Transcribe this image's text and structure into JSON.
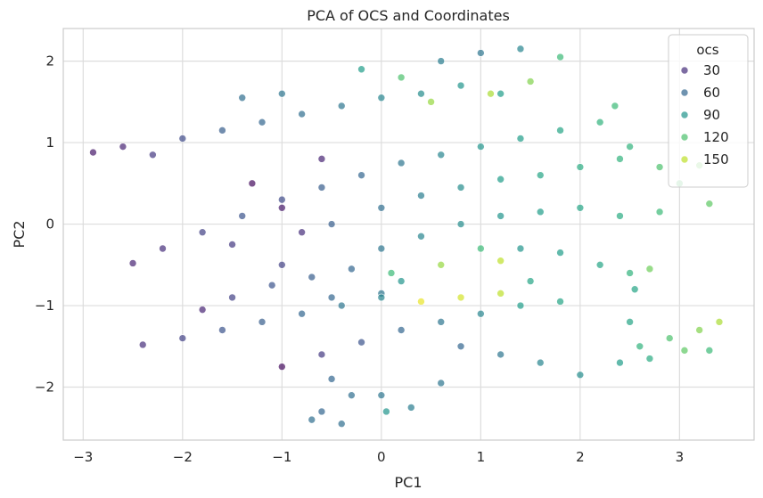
{
  "chart_data": {
    "type": "scatter",
    "title": "PCA of OCS and Coordinates",
    "xlabel": "PC1",
    "ylabel": "PC2",
    "xlim": [
      -3.2,
      3.75
    ],
    "ylim": [
      -2.65,
      2.4
    ],
    "xticks": [
      -3,
      -2,
      -1,
      0,
      1,
      2,
      3
    ],
    "xtick_labels": [
      "−3",
      "−2",
      "−1",
      "0",
      "1",
      "2",
      "3"
    ],
    "yticks": [
      -2,
      -1,
      0,
      1,
      2
    ],
    "ytick_labels": [
      "−2",
      "−1",
      "0",
      "1",
      "2"
    ],
    "grid": true,
    "legend": {
      "title": "ocs",
      "placement": "top-right",
      "entries": [
        {
          "label": "30",
          "value": 30
        },
        {
          "label": "60",
          "value": 60
        },
        {
          "label": "90",
          "value": 90
        },
        {
          "label": "120",
          "value": 120
        },
        {
          "label": "150",
          "value": 150
        }
      ]
    },
    "hue": {
      "variable": "ocs",
      "colormap": "viridis",
      "min": 10,
      "max": 165
    },
    "colormap_stops": [
      "#440154",
      "#482878",
      "#3e4989",
      "#31688e",
      "#26828e",
      "#1f9e89",
      "#35b779",
      "#6ece58",
      "#b5de2b",
      "#fde725"
    ],
    "point_alpha": 0.7,
    "points": [
      {
        "x": -2.9,
        "y": 0.88,
        "ocs": 20
      },
      {
        "x": -2.6,
        "y": 0.95,
        "ocs": 25
      },
      {
        "x": -2.3,
        "y": 0.85,
        "ocs": 35
      },
      {
        "x": -2.0,
        "y": 1.05,
        "ocs": 45
      },
      {
        "x": -1.6,
        "y": 1.15,
        "ocs": 55
      },
      {
        "x": -1.2,
        "y": 1.25,
        "ocs": 60
      },
      {
        "x": -0.8,
        "y": 1.35,
        "ocs": 65
      },
      {
        "x": -0.4,
        "y": 1.45,
        "ocs": 70
      },
      {
        "x": 0.0,
        "y": 1.55,
        "ocs": 80
      },
      {
        "x": 0.4,
        "y": 1.6,
        "ocs": 85
      },
      {
        "x": 0.8,
        "y": 1.7,
        "ocs": 90
      },
      {
        "x": 1.2,
        "y": 1.6,
        "ocs": 95
      },
      {
        "x": -1.4,
        "y": 1.55,
        "ocs": 65
      },
      {
        "x": -1.0,
        "y": 1.6,
        "ocs": 70
      },
      {
        "x": -0.2,
        "y": 1.9,
        "ocs": 95
      },
      {
        "x": 0.2,
        "y": 1.8,
        "ocs": 120
      },
      {
        "x": 0.6,
        "y": 2.0,
        "ocs": 75
      },
      {
        "x": 1.0,
        "y": 2.1,
        "ocs": 70
      },
      {
        "x": 1.4,
        "y": 2.15,
        "ocs": 80
      },
      {
        "x": 0.5,
        "y": 1.5,
        "ocs": 140
      },
      {
        "x": 1.1,
        "y": 1.6,
        "ocs": 145
      },
      {
        "x": 1.5,
        "y": 1.75,
        "ocs": 135
      },
      {
        "x": 1.8,
        "y": 2.05,
        "ocs": 115
      },
      {
        "x": -2.5,
        "y": -0.48,
        "ocs": 25
      },
      {
        "x": -2.2,
        "y": -0.3,
        "ocs": 30
      },
      {
        "x": -1.8,
        "y": -0.1,
        "ocs": 40
      },
      {
        "x": -1.4,
        "y": 0.1,
        "ocs": 50
      },
      {
        "x": -1.0,
        "y": 0.3,
        "ocs": 45
      },
      {
        "x": -0.6,
        "y": 0.45,
        "ocs": 55
      },
      {
        "x": -0.2,
        "y": 0.6,
        "ocs": 60
      },
      {
        "x": 0.2,
        "y": 0.75,
        "ocs": 70
      },
      {
        "x": 0.6,
        "y": 0.85,
        "ocs": 80
      },
      {
        "x": 1.0,
        "y": 0.95,
        "ocs": 90
      },
      {
        "x": 1.4,
        "y": 1.05,
        "ocs": 95
      },
      {
        "x": 1.8,
        "y": 1.15,
        "ocs": 100
      },
      {
        "x": 2.2,
        "y": 1.25,
        "ocs": 110
      },
      {
        "x": 2.35,
        "y": 1.45,
        "ocs": 115
      },
      {
        "x": -1.3,
        "y": 0.5,
        "ocs": 15
      },
      {
        "x": -1.0,
        "y": 0.2,
        "ocs": 20
      },
      {
        "x": -0.6,
        "y": 0.8,
        "ocs": 25
      },
      {
        "x": -0.8,
        "y": -0.1,
        "ocs": 30
      },
      {
        "x": -1.5,
        "y": -0.25,
        "ocs": 35
      },
      {
        "x": -1.0,
        "y": -0.5,
        "ocs": 40
      },
      {
        "x": -0.5,
        "y": 0.0,
        "ocs": 55
      },
      {
        "x": 0.0,
        "y": 0.2,
        "ocs": 65
      },
      {
        "x": 0.4,
        "y": 0.35,
        "ocs": 75
      },
      {
        "x": 0.8,
        "y": 0.45,
        "ocs": 85
      },
      {
        "x": 1.2,
        "y": 0.55,
        "ocs": 95
      },
      {
        "x": 1.6,
        "y": 0.6,
        "ocs": 100
      },
      {
        "x": 2.0,
        "y": 0.7,
        "ocs": 105
      },
      {
        "x": 2.4,
        "y": 0.8,
        "ocs": 110
      },
      {
        "x": 2.8,
        "y": 0.7,
        "ocs": 120
      },
      {
        "x": 3.2,
        "y": 0.72,
        "ocs": 130
      },
      {
        "x": 2.5,
        "y": 0.95,
        "ocs": 110
      },
      {
        "x": 3.0,
        "y": 0.5,
        "ocs": 120
      },
      {
        "x": 0.0,
        "y": -0.3,
        "ocs": 70
      },
      {
        "x": 0.4,
        "y": -0.15,
        "ocs": 80
      },
      {
        "x": 0.8,
        "y": 0.0,
        "ocs": 85
      },
      {
        "x": 1.2,
        "y": 0.1,
        "ocs": 90
      },
      {
        "x": 1.6,
        "y": 0.15,
        "ocs": 95
      },
      {
        "x": 2.0,
        "y": 0.2,
        "ocs": 100
      },
      {
        "x": 2.4,
        "y": 0.1,
        "ocs": 105
      },
      {
        "x": 2.8,
        "y": 0.15,
        "ocs": 115
      },
      {
        "x": 3.3,
        "y": 0.25,
        "ocs": 125
      },
      {
        "x": 1.4,
        "y": -0.3,
        "ocs": 90
      },
      {
        "x": 1.8,
        "y": -0.35,
        "ocs": 95
      },
      {
        "x": 2.2,
        "y": -0.5,
        "ocs": 100
      },
      {
        "x": 0.6,
        "y": -0.5,
        "ocs": 140
      },
      {
        "x": 1.0,
        "y": -0.3,
        "ocs": 115
      },
      {
        "x": 1.2,
        "y": -0.45,
        "ocs": 150
      },
      {
        "x": 0.1,
        "y": -0.6,
        "ocs": 115
      },
      {
        "x": 2.5,
        "y": -0.6,
        "ocs": 110
      },
      {
        "x": 2.7,
        "y": -0.55,
        "ocs": 130
      },
      {
        "x": 2.55,
        "y": -0.8,
        "ocs": 100
      },
      {
        "x": -1.8,
        "y": -1.05,
        "ocs": 25
      },
      {
        "x": -1.5,
        "y": -0.9,
        "ocs": 40
      },
      {
        "x": -1.1,
        "y": -0.75,
        "ocs": 50
      },
      {
        "x": -0.7,
        "y": -0.65,
        "ocs": 55
      },
      {
        "x": -0.3,
        "y": -0.55,
        "ocs": 60
      },
      {
        "x": -0.5,
        "y": -0.9,
        "ocs": 60
      },
      {
        "x": 0.0,
        "y": -0.85,
        "ocs": 70
      },
      {
        "x": 0.4,
        "y": -0.95,
        "ocs": 160
      },
      {
        "x": 0.8,
        "y": -0.9,
        "ocs": 155
      },
      {
        "x": 1.2,
        "y": -0.85,
        "ocs": 150
      },
      {
        "x": 0.2,
        "y": -0.7,
        "ocs": 90
      },
      {
        "x": 1.5,
        "y": -0.7,
        "ocs": 100
      },
      {
        "x": -2.4,
        "y": -1.48,
        "ocs": 30
      },
      {
        "x": -2.0,
        "y": -1.4,
        "ocs": 40
      },
      {
        "x": -1.6,
        "y": -1.3,
        "ocs": 50
      },
      {
        "x": -1.2,
        "y": -1.2,
        "ocs": 55
      },
      {
        "x": -0.8,
        "y": -1.1,
        "ocs": 60
      },
      {
        "x": -0.4,
        "y": -1.0,
        "ocs": 70
      },
      {
        "x": 0.0,
        "y": -0.9,
        "ocs": 80
      },
      {
        "x": -1.0,
        "y": -1.75,
        "ocs": 15
      },
      {
        "x": -0.6,
        "y": -1.6,
        "ocs": 35
      },
      {
        "x": -0.2,
        "y": -1.45,
        "ocs": 50
      },
      {
        "x": 0.2,
        "y": -1.3,
        "ocs": 60
      },
      {
        "x": 0.6,
        "y": -1.2,
        "ocs": 70
      },
      {
        "x": 1.0,
        "y": -1.1,
        "ocs": 80
      },
      {
        "x": 1.4,
        "y": -1.0,
        "ocs": 95
      },
      {
        "x": 1.8,
        "y": -0.95,
        "ocs": 100
      },
      {
        "x": 0.8,
        "y": -1.5,
        "ocs": 60
      },
      {
        "x": 1.2,
        "y": -1.6,
        "ocs": 70
      },
      {
        "x": 1.6,
        "y": -1.7,
        "ocs": 80
      },
      {
        "x": 2.0,
        "y": -1.85,
        "ocs": 85
      },
      {
        "x": 2.4,
        "y": -1.7,
        "ocs": 95
      },
      {
        "x": 2.6,
        "y": -1.5,
        "ocs": 110
      },
      {
        "x": 2.9,
        "y": -1.4,
        "ocs": 120
      },
      {
        "x": 3.2,
        "y": -1.3,
        "ocs": 135
      },
      {
        "x": 3.4,
        "y": -1.2,
        "ocs": 145
      },
      {
        "x": 2.7,
        "y": -1.65,
        "ocs": 105
      },
      {
        "x": 3.05,
        "y": -1.55,
        "ocs": 125
      },
      {
        "x": 2.5,
        "y": -1.2,
        "ocs": 100
      },
      {
        "x": 3.3,
        "y": -1.55,
        "ocs": 115
      },
      {
        "x": -0.5,
        "y": -1.9,
        "ocs": 60
      },
      {
        "x": -0.3,
        "y": -2.1,
        "ocs": 65
      },
      {
        "x": -0.6,
        "y": -2.3,
        "ocs": 60
      },
      {
        "x": -0.7,
        "y": -2.4,
        "ocs": 65
      },
      {
        "x": 0.0,
        "y": -2.1,
        "ocs": 70
      },
      {
        "x": 0.05,
        "y": -2.3,
        "ocs": 90
      },
      {
        "x": 0.3,
        "y": -2.25,
        "ocs": 75
      },
      {
        "x": 0.6,
        "y": -1.95,
        "ocs": 70
      },
      {
        "x": -0.4,
        "y": -2.45,
        "ocs": 65
      }
    ]
  }
}
